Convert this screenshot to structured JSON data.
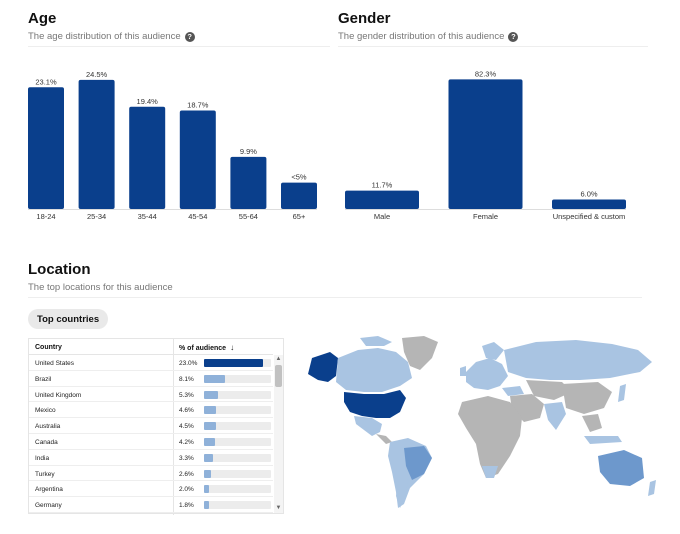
{
  "age": {
    "title": "Age",
    "subtitle": "The age distribution of this audience",
    "help_icon": "help-icon",
    "help_glyph": "?"
  },
  "gender": {
    "title": "Gender",
    "subtitle": "The gender distribution of this audience",
    "help_icon": "help-icon",
    "help_glyph": "?"
  },
  "location": {
    "title": "Location",
    "subtitle": "The top locations for this audience",
    "tab_label": "Top countries",
    "table": {
      "col_country": "Country",
      "col_pct": "% of audience",
      "sort_glyph": "↓",
      "rows": [
        {
          "country": "United States",
          "pct_label": "23.0%",
          "pct": 23.0
        },
        {
          "country": "Brazil",
          "pct_label": "8.1%",
          "pct": 8.1
        },
        {
          "country": "United Kingdom",
          "pct_label": "5.3%",
          "pct": 5.3
        },
        {
          "country": "Mexico",
          "pct_label": "4.6%",
          "pct": 4.6
        },
        {
          "country": "Australia",
          "pct_label": "4.5%",
          "pct": 4.5
        },
        {
          "country": "Canada",
          "pct_label": "4.2%",
          "pct": 4.2
        },
        {
          "country": "India",
          "pct_label": "3.3%",
          "pct": 3.3
        },
        {
          "country": "Turkey",
          "pct_label": "2.6%",
          "pct": 2.6
        },
        {
          "country": "Argentina",
          "pct_label": "2.0%",
          "pct": 2.0
        },
        {
          "country": "Germany",
          "pct_label": "1.8%",
          "pct": 1.8
        }
      ]
    },
    "scroll_up_glyph": "▲",
    "scroll_down_glyph": "▼"
  },
  "colors": {
    "bar": "#0a3f8c",
    "map_high": "#0a3f8c",
    "map_mid": "#6d98cc",
    "map_low": "#a9c4e2",
    "map_none": "#b5b5b5"
  },
  "chart_data": [
    {
      "type": "bar",
      "categories": [
        "18-24",
        "25-34",
        "35-44",
        "45-54",
        "55-64",
        "65+"
      ],
      "values": [
        23.1,
        24.5,
        19.4,
        18.7,
        9.9,
        5
      ],
      "value_labels": [
        "23.1%",
        "24.5%",
        "19.4%",
        "18.7%",
        "9.9%",
        "<5%"
      ],
      "ylim": [
        0,
        26
      ]
    },
    {
      "type": "bar",
      "categories": [
        "Male",
        "Female",
        "Unspecified & custom"
      ],
      "values": [
        11.7,
        82.3,
        6.0
      ],
      "value_labels": [
        "11.7%",
        "82.3%",
        "6.0%"
      ],
      "ylim": [
        0,
        87
      ]
    }
  ]
}
